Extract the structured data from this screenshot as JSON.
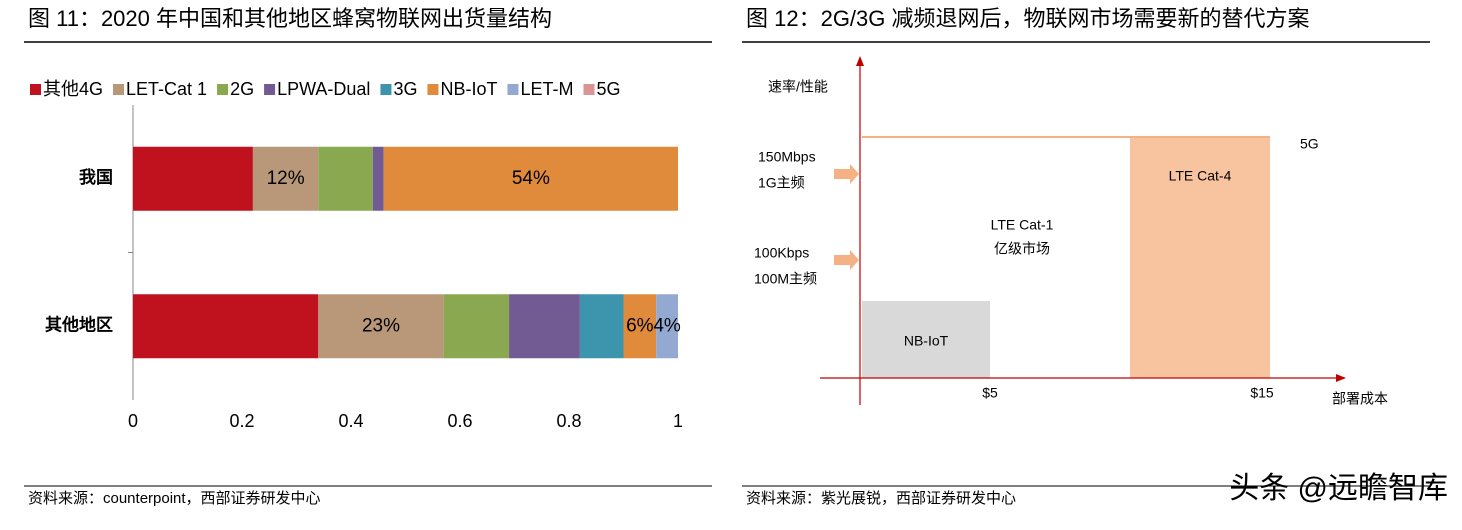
{
  "left": {
    "figure_title": "图 11：2020 年中国和其他地区蜂窝物联网出货量结构",
    "source": "资料来源：counterpoint，西部证券研发中心"
  },
  "chart_data": {
    "type": "stacked-bar-horizontal",
    "categories": [
      "我国",
      "其他地区"
    ],
    "series": [
      {
        "name": "其他4G",
        "color": "#c0111f",
        "values": [
          0.22,
          0.34
        ]
      },
      {
        "name": "LET-Cat 1",
        "color": "#b9987a",
        "values": [
          0.12,
          0.23
        ],
        "value_labels": [
          "12%",
          "23%"
        ]
      },
      {
        "name": "2G",
        "color": "#8aa84f",
        "values": [
          0.1,
          0.12
        ]
      },
      {
        "name": "LPWA-Dual",
        "color": "#725a92",
        "values": [
          0.02,
          0.13
        ]
      },
      {
        "name": "3G",
        "color": "#3c94ad",
        "values": [
          0,
          0.08
        ]
      },
      {
        "name": "NB-IoT",
        "color": "#e08a3c",
        "values": [
          0.54,
          0.06
        ],
        "value_labels": [
          "54%",
          "6%"
        ]
      },
      {
        "name": "LET-M",
        "color": "#94a9d2",
        "values": [
          0,
          0.04
        ],
        "value_labels": [
          null,
          "4%"
        ]
      },
      {
        "name": "5G",
        "color": "#d99594",
        "values": [
          0,
          0
        ]
      }
    ],
    "xlim": [
      0,
      1
    ],
    "xticks": [
      0,
      0.2,
      0.4,
      0.6,
      0.8,
      1
    ],
    "legend": "top"
  },
  "diagram": {
    "figure_title": "图 12：2G/3G 减频退网后，物联网市场需要新的替代方案",
    "y_axis_label": "速率/性能",
    "x_axis_label": "部署成本",
    "y_labels": [
      "150Mbps",
      "1G主频",
      "100Kbps",
      "100M主频"
    ],
    "x_labels": [
      "$5",
      "$15"
    ],
    "boxes": {
      "nb_iot": "NB-IoT",
      "cat1": "LTE Cat-1",
      "cat1_note": "亿级市场",
      "cat4": "LTE Cat-4",
      "five_g": "5G"
    },
    "source": "资料来源：紫光展锐，西部证券研发中心"
  },
  "watermark": "头条 @远瞻智库"
}
